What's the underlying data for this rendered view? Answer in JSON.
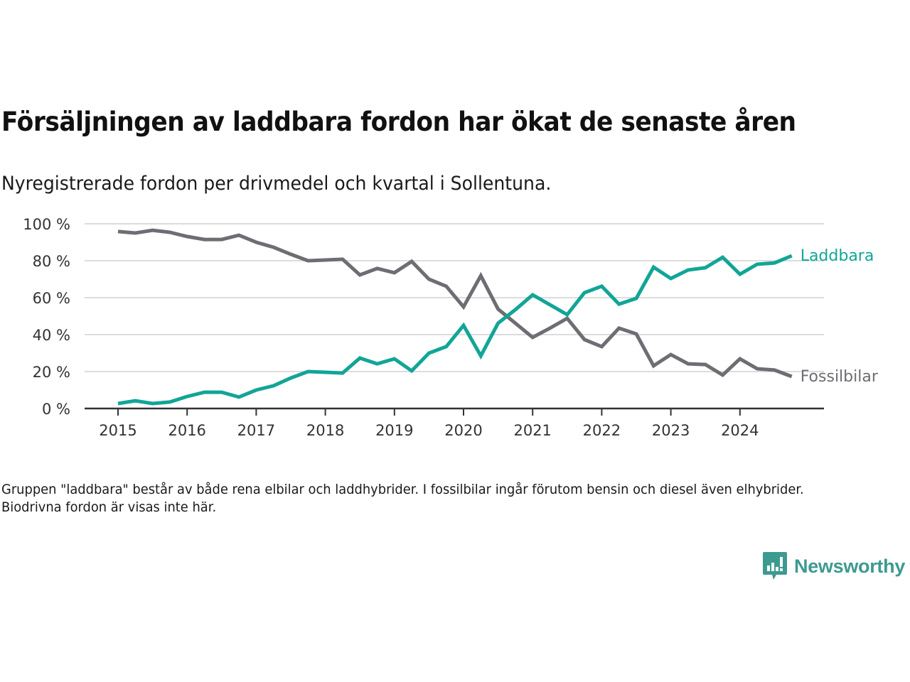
{
  "header": {
    "title": "Försäljningen av laddbara fordon har ökat de senaste åren",
    "subtitle": "Nyregistrerade fordon per drivmedel och kvartal i Sollentuna."
  },
  "footnote": "Gruppen \"laddbara\" består av både rena elbilar och laddhybrider. I fossilbilar ingår förutom bensin och diesel även elhybrider. Biodrivna fordon är visas inte här.",
  "logo": {
    "text": "Newsworthy",
    "icon": "newsworthy-bar-chart-speech-bubble-icon",
    "color": "#3d9a90"
  },
  "chart_data": {
    "type": "line",
    "title": "Försäljningen av laddbara fordon har ökat de senaste åren",
    "subtitle": "Nyregistrerade fordon per drivmedel och kvartal i Sollentuna.",
    "xlabel": "",
    "ylabel": "",
    "ylim": [
      0,
      100
    ],
    "yticks": [
      0,
      20,
      40,
      60,
      80,
      100
    ],
    "ytick_labels": [
      "0 %",
      "20 %",
      "40 %",
      "60 %",
      "80 %",
      "100 %"
    ],
    "xticks": [
      "2015",
      "2016",
      "2017",
      "2018",
      "2019",
      "2020",
      "2021",
      "2022",
      "2023",
      "2024"
    ],
    "x_unit": "quarter",
    "x_start": "2015 Q1",
    "x_end": "2024 Q4",
    "grid": "horizontal",
    "legend": "inline labels at line ends (right)",
    "series": [
      {
        "name": "Laddbara",
        "color": "#12a597",
        "values": [
          2.7,
          4.2,
          2.7,
          3.5,
          6.5,
          8.8,
          8.8,
          6.2,
          10.0,
          12.3,
          16.5,
          20.0,
          19.6,
          19.2,
          27.3,
          24.2,
          26.9,
          20.4,
          30.0,
          33.5,
          45.0,
          28.5,
          46.2,
          53.5,
          61.5,
          56.2,
          50.8,
          62.7,
          66.2,
          56.5,
          59.6,
          76.5,
          70.4,
          75.0,
          76.2,
          81.9,
          72.7,
          78.1,
          78.8,
          82.7
        ]
      },
      {
        "name": "Fossilbilar",
        "color": "#6e6d73",
        "values": [
          95.8,
          95.0,
          96.5,
          95.4,
          93.1,
          91.5,
          91.5,
          93.8,
          90.0,
          87.3,
          83.5,
          80.0,
          80.4,
          80.8,
          72.3,
          75.8,
          73.5,
          79.6,
          70.0,
          66.2,
          55.0,
          71.9,
          53.8,
          46.2,
          38.5,
          43.5,
          48.8,
          37.3,
          33.5,
          43.5,
          40.4,
          23.1,
          29.2,
          24.2,
          23.8,
          18.1,
          26.9,
          21.5,
          20.8,
          17.3
        ]
      }
    ]
  }
}
